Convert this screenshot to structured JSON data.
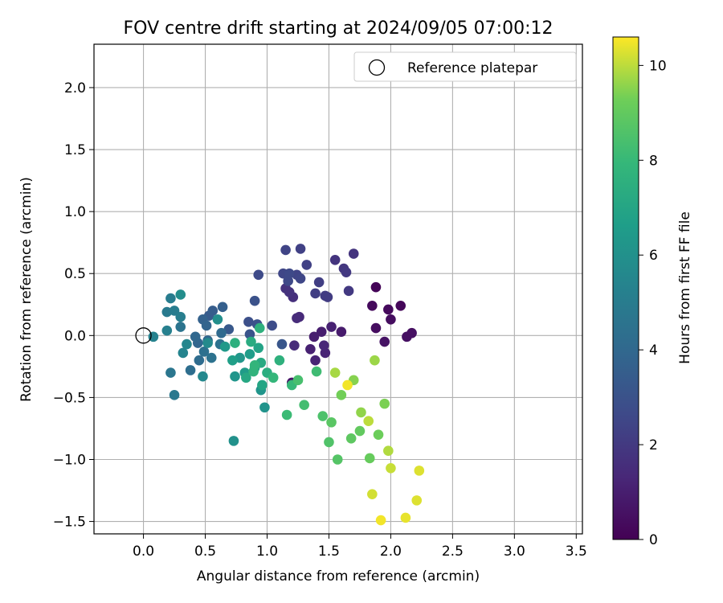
{
  "chart_data": {
    "type": "scatter",
    "title": "FOV centre drift starting at 2024/09/05 07:00:12",
    "xlabel": "Angular distance from reference (arcmin)",
    "ylabel": "Rotation from reference (arcmin)",
    "xlim": [
      -0.4,
      3.55
    ],
    "ylim": [
      -1.6,
      2.35
    ],
    "xticks": [
      0.0,
      0.5,
      1.0,
      1.5,
      2.0,
      2.5,
      3.0,
      3.5
    ],
    "xtick_labels": [
      "0.0",
      "0.5",
      "1.0",
      "1.5",
      "2.0",
      "2.5",
      "3.0",
      "3.5"
    ],
    "yticks": [
      -1.5,
      -1.0,
      -0.5,
      0.0,
      0.5,
      1.0,
      1.5,
      2.0
    ],
    "ytick_labels": [
      "−1.5",
      "−1.0",
      "−0.5",
      "0.0",
      "0.5",
      "1.0",
      "1.5",
      "2.0"
    ],
    "grid": true,
    "legend": {
      "placement": "top-right",
      "entries": [
        "Reference platepar"
      ]
    },
    "reference_point": {
      "x": 0.0,
      "y": 0.0
    },
    "colorbar": {
      "label": "Hours from first FF file",
      "range": [
        0,
        10.6
      ],
      "ticks": [
        0,
        2,
        4,
        6,
        8,
        10
      ],
      "tick_labels": [
        "0",
        "2",
        "4",
        "6",
        "8",
        "10"
      ],
      "colormap": "viridis"
    },
    "points": [
      {
        "x": 1.88,
        "y": 0.39,
        "c": 0.1
      },
      {
        "x": 2.08,
        "y": 0.24,
        "c": 0.2
      },
      {
        "x": 1.85,
        "y": 0.24,
        "c": 0.3
      },
      {
        "x": 1.98,
        "y": 0.21,
        "c": 0.3
      },
      {
        "x": 2.0,
        "y": 0.13,
        "c": 0.4
      },
      {
        "x": 1.88,
        "y": 0.06,
        "c": 0.4
      },
      {
        "x": 2.17,
        "y": 0.02,
        "c": 0.5
      },
      {
        "x": 2.13,
        "y": -0.01,
        "c": 0.5
      },
      {
        "x": 1.95,
        "y": -0.05,
        "c": 0.6
      },
      {
        "x": 1.2,
        "y": -0.38,
        "c": 0.7
      },
      {
        "x": 1.6,
        "y": 0.03,
        "c": 0.9
      },
      {
        "x": 1.44,
        "y": 0.03,
        "c": 1.0
      },
      {
        "x": 1.38,
        "y": -0.01,
        "c": 1.0
      },
      {
        "x": 1.52,
        "y": 0.07,
        "c": 1.1
      },
      {
        "x": 1.35,
        "y": -0.11,
        "c": 1.1
      },
      {
        "x": 1.39,
        "y": -0.2,
        "c": 1.2
      },
      {
        "x": 1.47,
        "y": -0.14,
        "c": 1.2
      },
      {
        "x": 1.46,
        "y": -0.08,
        "c": 1.3
      },
      {
        "x": 1.26,
        "y": 0.15,
        "c": 1.4
      },
      {
        "x": 1.24,
        "y": 0.14,
        "c": 1.5
      },
      {
        "x": 1.22,
        "y": -0.08,
        "c": 1.5
      },
      {
        "x": 1.21,
        "y": 0.31,
        "c": 1.6
      },
      {
        "x": 1.15,
        "y": 0.38,
        "c": 1.7
      },
      {
        "x": 1.18,
        "y": 0.35,
        "c": 1.7
      },
      {
        "x": 1.7,
        "y": 0.66,
        "c": 1.8
      },
      {
        "x": 1.55,
        "y": 0.61,
        "c": 1.8
      },
      {
        "x": 1.62,
        "y": 0.54,
        "c": 1.9
      },
      {
        "x": 1.64,
        "y": 0.51,
        "c": 2.0
      },
      {
        "x": 1.66,
        "y": 0.36,
        "c": 2.0
      },
      {
        "x": 1.47,
        "y": 0.32,
        "c": 2.1
      },
      {
        "x": 1.49,
        "y": 0.31,
        "c": 2.1
      },
      {
        "x": 1.42,
        "y": 0.43,
        "c": 2.2
      },
      {
        "x": 1.39,
        "y": 0.34,
        "c": 2.2
      },
      {
        "x": 1.32,
        "y": 0.57,
        "c": 2.3
      },
      {
        "x": 1.27,
        "y": 0.7,
        "c": 2.3
      },
      {
        "x": 1.15,
        "y": 0.69,
        "c": 2.4
      },
      {
        "x": 1.24,
        "y": 0.49,
        "c": 2.4
      },
      {
        "x": 1.27,
        "y": 0.46,
        "c": 2.5
      },
      {
        "x": 1.13,
        "y": 0.5,
        "c": 2.5
      },
      {
        "x": 1.17,
        "y": 0.44,
        "c": 2.6
      },
      {
        "x": 1.18,
        "y": 0.5,
        "c": 2.6
      },
      {
        "x": 0.93,
        "y": 0.49,
        "c": 2.7
      },
      {
        "x": 1.04,
        "y": 0.08,
        "c": 2.8
      },
      {
        "x": 0.85,
        "y": 0.11,
        "c": 2.9
      },
      {
        "x": 0.92,
        "y": 0.09,
        "c": 3.0
      },
      {
        "x": 0.9,
        "y": 0.28,
        "c": 3.0
      },
      {
        "x": 0.86,
        "y": 0.01,
        "c": 3.1
      },
      {
        "x": 1.12,
        "y": -0.07,
        "c": 3.2
      },
      {
        "x": 0.69,
        "y": 0.05,
        "c": 3.3
      },
      {
        "x": 0.53,
        "y": 0.16,
        "c": 3.4
      },
      {
        "x": 0.56,
        "y": 0.2,
        "c": 3.5
      },
      {
        "x": 0.64,
        "y": 0.23,
        "c": 3.6
      },
      {
        "x": 0.48,
        "y": 0.13,
        "c": 3.7
      },
      {
        "x": 0.51,
        "y": 0.08,
        "c": 3.8
      },
      {
        "x": 0.44,
        "y": -0.06,
        "c": 3.9
      },
      {
        "x": 0.52,
        "y": -0.04,
        "c": 4.0
      },
      {
        "x": 0.42,
        "y": -0.01,
        "c": 4.0
      },
      {
        "x": 0.63,
        "y": 0.02,
        "c": 4.1
      },
      {
        "x": 0.45,
        "y": -0.2,
        "c": 4.2
      },
      {
        "x": 0.38,
        "y": -0.28,
        "c": 4.3
      },
      {
        "x": 0.49,
        "y": -0.13,
        "c": 4.4
      },
      {
        "x": 0.55,
        "y": -0.18,
        "c": 4.5
      },
      {
        "x": 0.62,
        "y": -0.07,
        "c": 4.5
      },
      {
        "x": 0.3,
        "y": 0.07,
        "c": 4.6
      },
      {
        "x": 0.22,
        "y": -0.3,
        "c": 4.7
      },
      {
        "x": 0.25,
        "y": -0.48,
        "c": 4.8
      },
      {
        "x": 0.19,
        "y": 0.19,
        "c": 4.9
      },
      {
        "x": 0.25,
        "y": 0.2,
        "c": 5.0
      },
      {
        "x": 0.22,
        "y": 0.3,
        "c": 5.0
      },
      {
        "x": 0.3,
        "y": 0.15,
        "c": 5.1
      },
      {
        "x": 0.19,
        "y": 0.04,
        "c": 5.2
      },
      {
        "x": 0.08,
        "y": -0.01,
        "c": 5.3
      },
      {
        "x": 0.32,
        "y": -0.14,
        "c": 5.4
      },
      {
        "x": 0.35,
        "y": -0.07,
        "c": 5.5
      },
      {
        "x": 0.48,
        "y": -0.33,
        "c": 5.6
      },
      {
        "x": 0.52,
        "y": -0.06,
        "c": 5.7
      },
      {
        "x": 0.3,
        "y": 0.33,
        "c": 5.8
      },
      {
        "x": 0.6,
        "y": 0.13,
        "c": 5.9
      },
      {
        "x": 0.73,
        "y": -0.85,
        "c": 6.0
      },
      {
        "x": 0.98,
        "y": -0.58,
        "c": 6.1
      },
      {
        "x": 0.95,
        "y": -0.44,
        "c": 6.2
      },
      {
        "x": 0.74,
        "y": -0.33,
        "c": 6.2
      },
      {
        "x": 0.78,
        "y": -0.18,
        "c": 6.3
      },
      {
        "x": 0.66,
        "y": -0.09,
        "c": 6.4
      },
      {
        "x": 0.82,
        "y": -0.3,
        "c": 6.5
      },
      {
        "x": 0.86,
        "y": -0.15,
        "c": 6.6
      },
      {
        "x": 0.72,
        "y": -0.2,
        "c": 6.7
      },
      {
        "x": 0.9,
        "y": -0.26,
        "c": 6.8
      },
      {
        "x": 0.93,
        "y": -0.1,
        "c": 6.9
      },
      {
        "x": 0.96,
        "y": -0.4,
        "c": 7.0
      },
      {
        "x": 0.83,
        "y": -0.34,
        "c": 7.1
      },
      {
        "x": 0.95,
        "y": -0.22,
        "c": 7.2
      },
      {
        "x": 0.87,
        "y": -0.05,
        "c": 7.3
      },
      {
        "x": 1.0,
        "y": -0.3,
        "c": 7.4
      },
      {
        "x": 0.74,
        "y": -0.06,
        "c": 7.5
      },
      {
        "x": 1.1,
        "y": -0.2,
        "c": 7.6
      },
      {
        "x": 0.94,
        "y": 0.06,
        "c": 7.6
      },
      {
        "x": 0.89,
        "y": -0.29,
        "c": 7.7
      },
      {
        "x": 0.9,
        "y": -0.24,
        "c": 7.8
      },
      {
        "x": 1.05,
        "y": -0.34,
        "c": 7.9
      },
      {
        "x": 1.2,
        "y": -0.4,
        "c": 8.0
      },
      {
        "x": 1.16,
        "y": -0.64,
        "c": 8.1
      },
      {
        "x": 1.4,
        "y": -0.29,
        "c": 8.2
      },
      {
        "x": 1.3,
        "y": -0.56,
        "c": 8.3
      },
      {
        "x": 1.25,
        "y": -0.36,
        "c": 8.4
      },
      {
        "x": 1.45,
        "y": -0.65,
        "c": 8.5
      },
      {
        "x": 1.5,
        "y": -0.86,
        "c": 8.6
      },
      {
        "x": 1.57,
        "y": -1.0,
        "c": 8.7
      },
      {
        "x": 1.52,
        "y": -0.7,
        "c": 8.8
      },
      {
        "x": 1.68,
        "y": -0.83,
        "c": 8.9
      },
      {
        "x": 1.75,
        "y": -0.77,
        "c": 9.0
      },
      {
        "x": 1.83,
        "y": -0.99,
        "c": 9.1
      },
      {
        "x": 1.9,
        "y": -0.8,
        "c": 9.2
      },
      {
        "x": 1.6,
        "y": -0.48,
        "c": 9.3
      },
      {
        "x": 1.95,
        "y": -0.55,
        "c": 9.4
      },
      {
        "x": 1.7,
        "y": -0.36,
        "c": 9.5
      },
      {
        "x": 1.76,
        "y": -0.62,
        "c": 9.6
      },
      {
        "x": 1.87,
        "y": -0.2,
        "c": 9.7
      },
      {
        "x": 1.55,
        "y": -0.3,
        "c": 9.8
      },
      {
        "x": 1.98,
        "y": -0.93,
        "c": 9.9
      },
      {
        "x": 1.82,
        "y": -0.69,
        "c": 10.0
      },
      {
        "x": 2.0,
        "y": -1.07,
        "c": 10.1
      },
      {
        "x": 1.85,
        "y": -1.28,
        "c": 10.2
      },
      {
        "x": 2.21,
        "y": -1.33,
        "c": 10.3
      },
      {
        "x": 2.23,
        "y": -1.09,
        "c": 10.3
      },
      {
        "x": 2.12,
        "y": -1.47,
        "c": 10.4
      },
      {
        "x": 1.92,
        "y": -1.49,
        "c": 10.5
      },
      {
        "x": 1.65,
        "y": -0.4,
        "c": 10.5
      }
    ]
  }
}
